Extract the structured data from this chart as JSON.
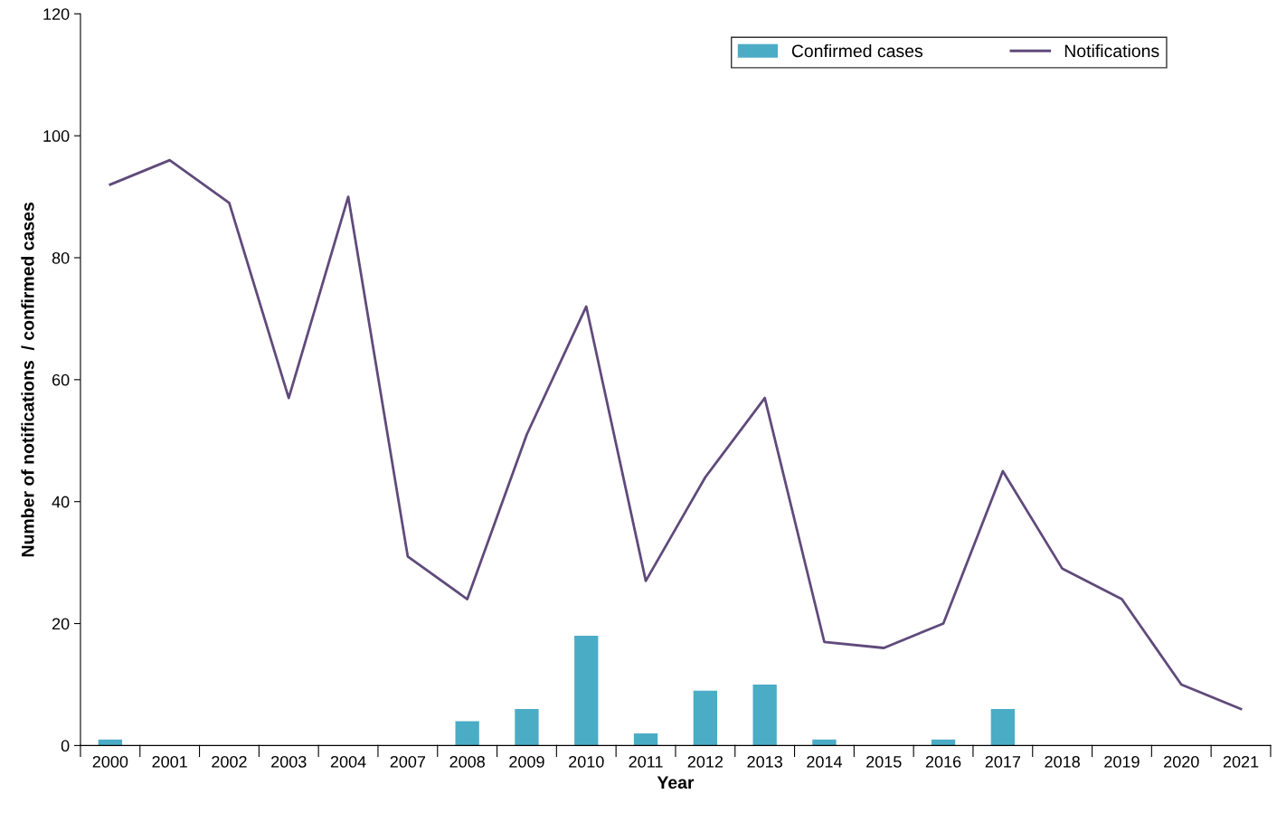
{
  "chart_data": {
    "type": "bar",
    "xlabel": "Year",
    "ylabel": "Number of notifications  / confirmed cases",
    "categories": [
      "2000",
      "2001",
      "2002",
      "2003",
      "2004",
      "2007",
      "2008",
      "2009",
      "2010",
      "2011",
      "2012",
      "2013",
      "2014",
      "2015",
      "2016",
      "2017",
      "2018",
      "2019",
      "2020",
      "2021"
    ],
    "series": [
      {
        "name": "Confirmed cases",
        "color": "#4bacc6",
        "values": [
          1,
          0,
          0,
          0,
          0,
          0,
          4,
          6,
          18,
          2,
          9,
          10,
          1,
          0,
          1,
          6,
          0,
          0,
          0,
          0
        ]
      },
      {
        "name": "Notifications",
        "type": "line",
        "color": "#604a7b",
        "values": [
          92,
          96,
          89,
          57,
          90,
          31,
          24,
          51,
          72,
          27,
          44,
          57,
          17,
          16,
          20,
          45,
          29,
          24,
          10,
          6
        ]
      }
    ],
    "ylim": [
      0,
      120
    ],
    "yticks": [
      0,
      20,
      40,
      60,
      80,
      100,
      120
    ],
    "grid": false,
    "legend": "top right",
    "marker": "none"
  }
}
